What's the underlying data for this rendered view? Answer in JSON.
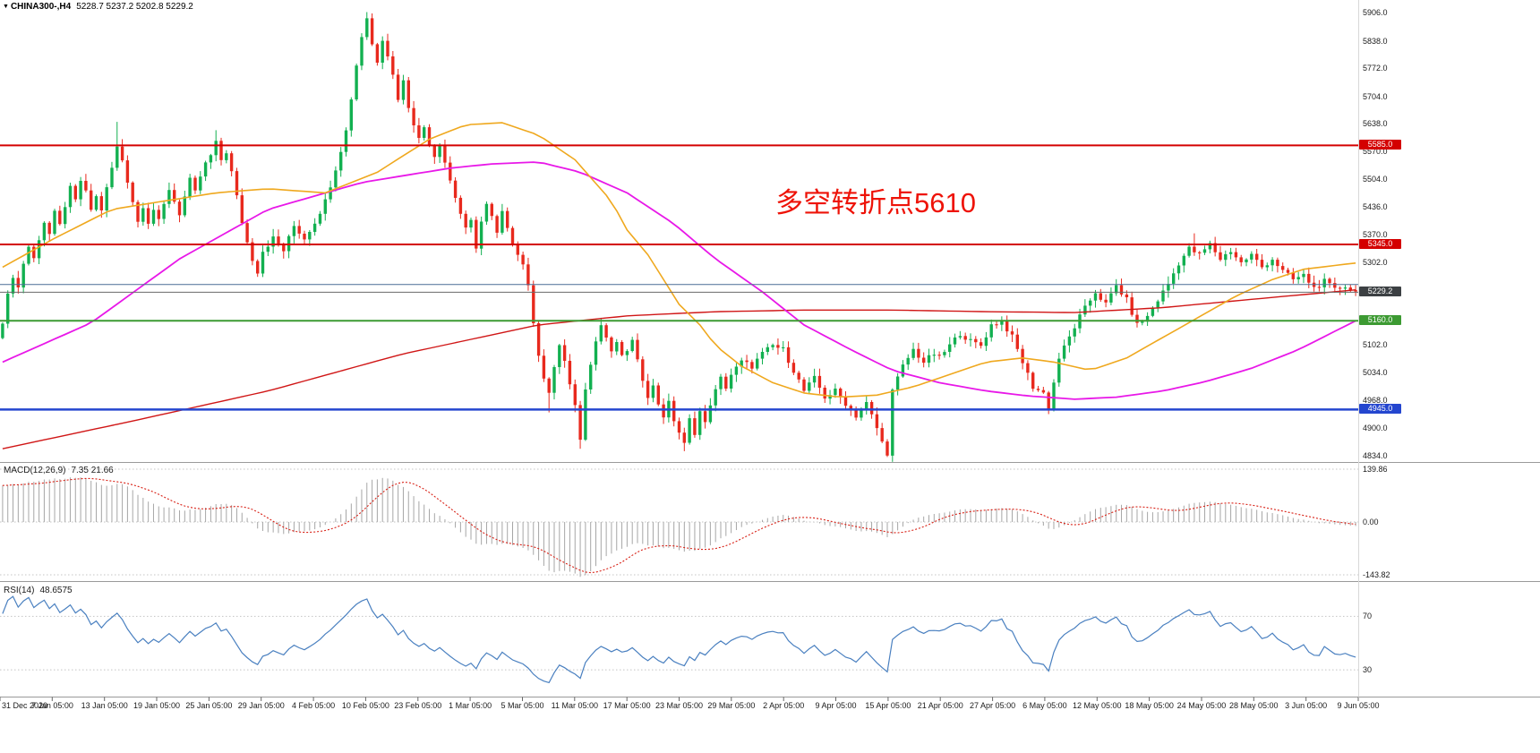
{
  "window": {
    "symbol_label": "CHINA300-,H4",
    "ohlc": "5228.7 5237.2 5202.8 5229.2"
  },
  "annotation": {
    "text": "多空转折点5610",
    "color": "#ee1308"
  },
  "axes": {
    "price_ticks": [
      "5906.0",
      "5838.0",
      "5772.0",
      "5704.0",
      "5638.0",
      "5570.0",
      "5504.0",
      "5436.0",
      "5370.0",
      "5302.0",
      "5102.0",
      "5034.0",
      "4968.0",
      "4900.0",
      "4834.0"
    ],
    "time_labels": [
      "31 Dec 2020",
      "7 Jan 05:00",
      "13 Jan 05:00",
      "19 Jan 05:00",
      "25 Jan 05:00",
      "29 Jan 05:00",
      "4 Feb 05:00",
      "10 Feb 05:00",
      "23 Feb 05:00",
      "1 Mar 05:00",
      "5 Mar 05:00",
      "11 Mar 05:00",
      "17 Mar 05:00",
      "23 Mar 05:00",
      "29 Mar 05:00",
      "2 Apr 05:00",
      "9 Apr 05:00",
      "15 Apr 05:00",
      "21 Apr 05:00",
      "27 Apr 05:00",
      "6 May 05:00",
      "12 May 05:00",
      "18 May 05:00",
      "24 May 05:00",
      "28 May 05:00",
      "3 Jun 05:00",
      "9 Jun 05:00"
    ]
  },
  "chart_data": {
    "type": "candlestick",
    "symbol": "CHINA300-",
    "timeframe": "H4",
    "ohlc_current": {
      "open": 5228.7,
      "high": 5237.2,
      "low": 5202.8,
      "close": 5229.2
    },
    "ylim": [
      4820,
      5920
    ],
    "colors": {
      "bull": "#12b050",
      "bear": "#e8291d",
      "macd_hist": "#a6a6a6",
      "macd_signal": "#d82015",
      "rsi_line": "#4a80c0",
      "levels_dotted": "#c4c4c4"
    },
    "candles": {
      "count": 261,
      "close_waypoints": [
        [
          0,
          5160
        ],
        [
          1,
          5220
        ],
        [
          2,
          5270
        ],
        [
          3,
          5240
        ],
        [
          4,
          5300
        ],
        [
          5,
          5340
        ],
        [
          6,
          5310
        ],
        [
          7,
          5360
        ],
        [
          8,
          5400
        ],
        [
          9,
          5370
        ],
        [
          10,
          5420
        ],
        [
          11,
          5390
        ],
        [
          12,
          5440
        ],
        [
          13,
          5480
        ],
        [
          14,
          5450
        ],
        [
          15,
          5500
        ],
        [
          16,
          5470
        ],
        [
          17,
          5430
        ],
        [
          18,
          5460
        ],
        [
          19,
          5430
        ],
        [
          20,
          5480
        ],
        [
          21,
          5530
        ],
        [
          22,
          5580
        ],
        [
          23,
          5550
        ],
        [
          24,
          5500
        ],
        [
          25,
          5450
        ],
        [
          26,
          5400
        ],
        [
          27,
          5440
        ],
        [
          28,
          5400
        ],
        [
          29,
          5430
        ],
        [
          30,
          5400
        ],
        [
          31,
          5440
        ],
        [
          32,
          5480
        ],
        [
          33,
          5450
        ],
        [
          34,
          5420
        ],
        [
          35,
          5460
        ],
        [
          36,
          5500
        ],
        [
          37,
          5470
        ],
        [
          38,
          5510
        ],
        [
          39,
          5540
        ],
        [
          40,
          5560
        ],
        [
          41,
          5590
        ],
        [
          42,
          5550
        ],
        [
          43,
          5570
        ],
        [
          44,
          5520
        ],
        [
          45,
          5460
        ],
        [
          46,
          5400
        ],
        [
          47,
          5350
        ],
        [
          48,
          5310
        ],
        [
          49,
          5280
        ],
        [
          50,
          5330
        ],
        [
          52,
          5360
        ],
        [
          54,
          5330
        ],
        [
          56,
          5390
        ],
        [
          58,
          5360
        ],
        [
          60,
          5400
        ],
        [
          62,
          5450
        ],
        [
          64,
          5530
        ],
        [
          66,
          5620
        ],
        [
          67,
          5700
        ],
        [
          68,
          5780
        ],
        [
          69,
          5850
        ],
        [
          70,
          5895
        ],
        [
          71,
          5830
        ],
        [
          72,
          5790
        ],
        [
          73,
          5845
        ],
        [
          74,
          5805
        ],
        [
          75,
          5755
        ],
        [
          76,
          5700
        ],
        [
          77,
          5740
        ],
        [
          78,
          5680
        ],
        [
          79,
          5640
        ],
        [
          80,
          5600
        ],
        [
          81,
          5630
        ],
        [
          82,
          5590
        ],
        [
          83,
          5560
        ],
        [
          84,
          5590
        ],
        [
          85,
          5545
        ],
        [
          86,
          5500
        ],
        [
          87,
          5460
        ],
        [
          88,
          5420
        ],
        [
          89,
          5380
        ],
        [
          90,
          5400
        ],
        [
          91,
          5340
        ],
        [
          92,
          5400
        ],
        [
          93,
          5440
        ],
        [
          94,
          5410
        ],
        [
          95,
          5370
        ],
        [
          96,
          5420
        ],
        [
          97,
          5390
        ],
        [
          98,
          5350
        ],
        [
          99,
          5320
        ],
        [
          100,
          5300
        ],
        [
          101,
          5240
        ],
        [
          102,
          5160
        ],
        [
          103,
          5080
        ],
        [
          104,
          5020
        ],
        [
          105,
          4980
        ],
        [
          106,
          5050
        ],
        [
          107,
          5100
        ],
        [
          108,
          5060
        ],
        [
          109,
          5000
        ],
        [
          110,
          4960
        ],
        [
          111,
          4870
        ],
        [
          112,
          5000
        ],
        [
          113,
          5060
        ],
        [
          114,
          5110
        ],
        [
          115,
          5150
        ],
        [
          116,
          5120
        ],
        [
          117,
          5080
        ],
        [
          118,
          5110
        ],
        [
          119,
          5070
        ],
        [
          120,
          5090
        ],
        [
          121,
          5110
        ],
        [
          122,
          5060
        ],
        [
          123,
          5020
        ],
        [
          124,
          4980
        ],
        [
          125,
          5000
        ],
        [
          126,
          4960
        ],
        [
          127,
          4930
        ],
        [
          128,
          4960
        ],
        [
          129,
          4920
        ],
        [
          130,
          4890
        ],
        [
          131,
          4860
        ],
        [
          132,
          4920
        ],
        [
          133,
          4890
        ],
        [
          134,
          4940
        ],
        [
          135,
          4910
        ],
        [
          136,
          4960
        ],
        [
          137,
          4990
        ],
        [
          138,
          5020
        ],
        [
          139,
          5000
        ],
        [
          140,
          5030
        ],
        [
          142,
          5060
        ],
        [
          144,
          5050
        ],
        [
          146,
          5080
        ],
        [
          148,
          5100
        ],
        [
          150,
          5090
        ],
        [
          152,
          5040
        ],
        [
          154,
          4990
        ],
        [
          156,
          5020
        ],
        [
          158,
          4975
        ],
        [
          160,
          4990
        ],
        [
          162,
          4960
        ],
        [
          164,
          4930
        ],
        [
          166,
          4960
        ],
        [
          168,
          4900
        ],
        [
          169,
          4865
        ],
        [
          170,
          4840
        ],
        [
          171,
          4990
        ],
        [
          173,
          5050
        ],
        [
          175,
          5090
        ],
        [
          177,
          5060
        ],
        [
          179,
          5080
        ],
        [
          180,
          5070
        ],
        [
          182,
          5100
        ],
        [
          184,
          5130
        ],
        [
          186,
          5110
        ],
        [
          188,
          5100
        ],
        [
          190,
          5150
        ],
        [
          192,
          5160
        ],
        [
          194,
          5120
        ],
        [
          196,
          5060
        ],
        [
          198,
          5000
        ],
        [
          200,
          4985
        ],
        [
          201,
          4950
        ],
        [
          203,
          5070
        ],
        [
          205,
          5120
        ],
        [
          207,
          5170
        ],
        [
          209,
          5210
        ],
        [
          210,
          5230
        ],
        [
          212,
          5200
        ],
        [
          214,
          5245
        ],
        [
          216,
          5210
        ],
        [
          218,
          5150
        ],
        [
          220,
          5170
        ],
        [
          222,
          5210
        ],
        [
          224,
          5250
        ],
        [
          226,
          5300
        ],
        [
          228,
          5335
        ],
        [
          230,
          5320
        ],
        [
          232,
          5345
        ],
        [
          234,
          5310
        ],
        [
          236,
          5330
        ],
        [
          238,
          5300
        ],
        [
          240,
          5320
        ],
        [
          242,
          5290
        ],
        [
          244,
          5310
        ],
        [
          246,
          5280
        ],
        [
          248,
          5260
        ],
        [
          250,
          5270
        ],
        [
          252,
          5240
        ],
        [
          254,
          5255
        ],
        [
          256,
          5235
        ],
        [
          258,
          5245
        ],
        [
          260,
          5229
        ]
      ],
      "extremes": [
        {
          "i": 22,
          "high": 5642
        },
        {
          "i": 41,
          "high": 5622
        },
        {
          "i": 50,
          "low": 5266
        },
        {
          "i": 70,
          "high": 5908
        },
        {
          "i": 105,
          "low": 4938
        },
        {
          "i": 111,
          "low": 4850
        },
        {
          "i": 131,
          "low": 4844
        },
        {
          "i": 170,
          "low": 4830
        },
        {
          "i": 201,
          "low": 4934
        },
        {
          "i": 229,
          "high": 5372
        }
      ]
    },
    "overlays": {
      "hlines": [
        {
          "price": 5585.0,
          "label": "5585.0",
          "color": "#d40000",
          "width": 2,
          "badge": "#d40000"
        },
        {
          "price": 5345.0,
          "label": "5345.0",
          "color": "#d40000",
          "width": 2,
          "badge": "#d40000"
        },
        {
          "price": 5248.0,
          "label": "",
          "color": "#4a6d96",
          "width": 1,
          "badge": null
        },
        {
          "price": 5229.2,
          "label": "5229.2",
          "color": "#6a6a6a",
          "width": 1,
          "badge": "#3c4043"
        },
        {
          "price": 5160.0,
          "label": "5160.0",
          "color": "#3c9a32",
          "width": 2,
          "badge": "#3c9a32"
        },
        {
          "price": 4945.0,
          "label": "4945.0",
          "color": "#2446cf",
          "width": 2.5,
          "badge": "#2446cf"
        }
      ],
      "moving_averages": [
        {
          "name": "ma-slow-red",
          "color": "#d01616",
          "width": 1.4,
          "points": [
            [
              0,
              4850
            ],
            [
              26,
              4920
            ],
            [
              51,
              4990
            ],
            [
              77,
              5080
            ],
            [
              103,
              5150
            ],
            [
              120,
              5172
            ],
            [
              137,
              5182
            ],
            [
              154,
              5186
            ],
            [
              171,
              5186
            ],
            [
              189,
              5182
            ],
            [
              206,
              5180
            ],
            [
              223,
              5192
            ],
            [
              240,
              5212
            ],
            [
              260,
              5235
            ]
          ]
        },
        {
          "name": "ma-mid-magenta",
          "color": "#e818e8",
          "width": 1.8,
          "points": [
            [
              0,
              5060
            ],
            [
              17,
              5155
            ],
            [
              34,
              5310
            ],
            [
              51,
              5430
            ],
            [
              69,
              5495
            ],
            [
              86,
              5530
            ],
            [
              94,
              5540
            ],
            [
              103,
              5545
            ],
            [
              111,
              5520
            ],
            [
              120,
              5470
            ],
            [
              129,
              5395
            ],
            [
              137,
              5310
            ],
            [
              146,
              5230
            ],
            [
              154,
              5150
            ],
            [
              163,
              5090
            ],
            [
              171,
              5040
            ],
            [
              180,
              5010
            ],
            [
              189,
              4990
            ],
            [
              197,
              4978
            ],
            [
              206,
              4970
            ],
            [
              214,
              4975
            ],
            [
              223,
              4990
            ],
            [
              231,
              5012
            ],
            [
              240,
              5045
            ],
            [
              249,
              5090
            ],
            [
              260,
              5160
            ]
          ]
        },
        {
          "name": "ma-fast-orange",
          "color": "#efa81e",
          "width": 1.6,
          "points": [
            [
              0,
              5290
            ],
            [
              10,
              5360
            ],
            [
              21,
              5430
            ],
            [
              31,
              5450
            ],
            [
              41,
              5470
            ],
            [
              51,
              5480
            ],
            [
              62,
              5470
            ],
            [
              72,
              5520
            ],
            [
              82,
              5600
            ],
            [
              89,
              5635
            ],
            [
              96,
              5640
            ],
            [
              103,
              5610
            ],
            [
              110,
              5550
            ],
            [
              117,
              5450
            ],
            [
              120,
              5380
            ],
            [
              124,
              5320
            ],
            [
              127,
              5260
            ],
            [
              130,
              5200
            ],
            [
              134,
              5150
            ],
            [
              137,
              5100
            ],
            [
              142,
              5050
            ],
            [
              148,
              5010
            ],
            [
              154,
              4985
            ],
            [
              161,
              4975
            ],
            [
              168,
              4980
            ],
            [
              175,
              5000
            ],
            [
              182,
              5030
            ],
            [
              189,
              5060
            ],
            [
              196,
              5070
            ],
            [
              202,
              5060
            ],
            [
              209,
              5040
            ],
            [
              216,
              5070
            ],
            [
              223,
              5120
            ],
            [
              230,
              5170
            ],
            [
              237,
              5220
            ],
            [
              244,
              5260
            ],
            [
              250,
              5285
            ],
            [
              260,
              5300
            ]
          ]
        }
      ]
    },
    "indicators": [
      {
        "type": "macd",
        "label": "MACD(12,26,9)",
        "values_label": "7.35 21.66",
        "params": [
          12,
          26,
          9
        ],
        "axis_ticks": [
          "139.86",
          "0.00",
          "-143.82"
        ]
      },
      {
        "type": "rsi",
        "label": "RSI(14)",
        "values_label": "48.6575",
        "period": 14,
        "levels": [
          70,
          30
        ],
        "axis_ticks": [
          "70",
          "30"
        ]
      }
    ]
  }
}
